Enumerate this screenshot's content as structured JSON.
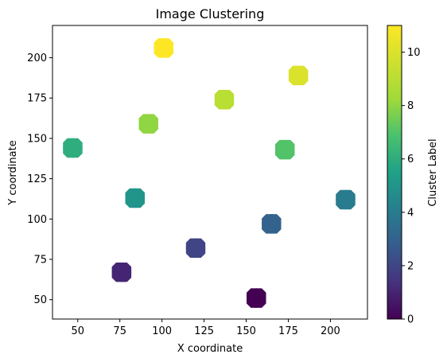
{
  "chart_data": {
    "type": "scatter",
    "title": "Image Clustering",
    "xlabel": "X coordinate",
    "ylabel": "Y coordinate",
    "xlim": [
      35,
      222
    ],
    "ylim": [
      38,
      220
    ],
    "xticks": [
      "50",
      "75",
      "100",
      "125",
      "150",
      "175",
      "200"
    ],
    "xtick_values": [
      50,
      75,
      100,
      125,
      150,
      175,
      200
    ],
    "yticks": [
      "50",
      "75",
      "100",
      "125",
      "150",
      "175",
      "200"
    ],
    "ytick_values": [
      50,
      75,
      100,
      125,
      150,
      175,
      200
    ],
    "grid": false,
    "colormap": "viridis",
    "colorbar": {
      "label": "Cluster Label",
      "range": [
        0,
        11
      ],
      "ticks": [
        "0",
        "2",
        "4",
        "6",
        "8",
        "10"
      ],
      "tick_values": [
        0,
        2,
        4,
        6,
        8,
        10
      ]
    },
    "points": [
      {
        "x": 156,
        "y": 51,
        "cluster": 0
      },
      {
        "x": 76,
        "y": 67,
        "cluster": 1
      },
      {
        "x": 120,
        "y": 82,
        "cluster": 2
      },
      {
        "x": 165,
        "y": 97,
        "cluster": 3
      },
      {
        "x": 209,
        "y": 112,
        "cluster": 4
      },
      {
        "x": 84,
        "y": 113,
        "cluster": 5
      },
      {
        "x": 47,
        "y": 144,
        "cluster": 6
      },
      {
        "x": 173,
        "y": 143,
        "cluster": 7
      },
      {
        "x": 92,
        "y": 159,
        "cluster": 8
      },
      {
        "x": 137,
        "y": 174,
        "cluster": 9
      },
      {
        "x": 181,
        "y": 189,
        "cluster": 10
      },
      {
        "x": 101,
        "y": 206,
        "cluster": 11
      }
    ]
  }
}
